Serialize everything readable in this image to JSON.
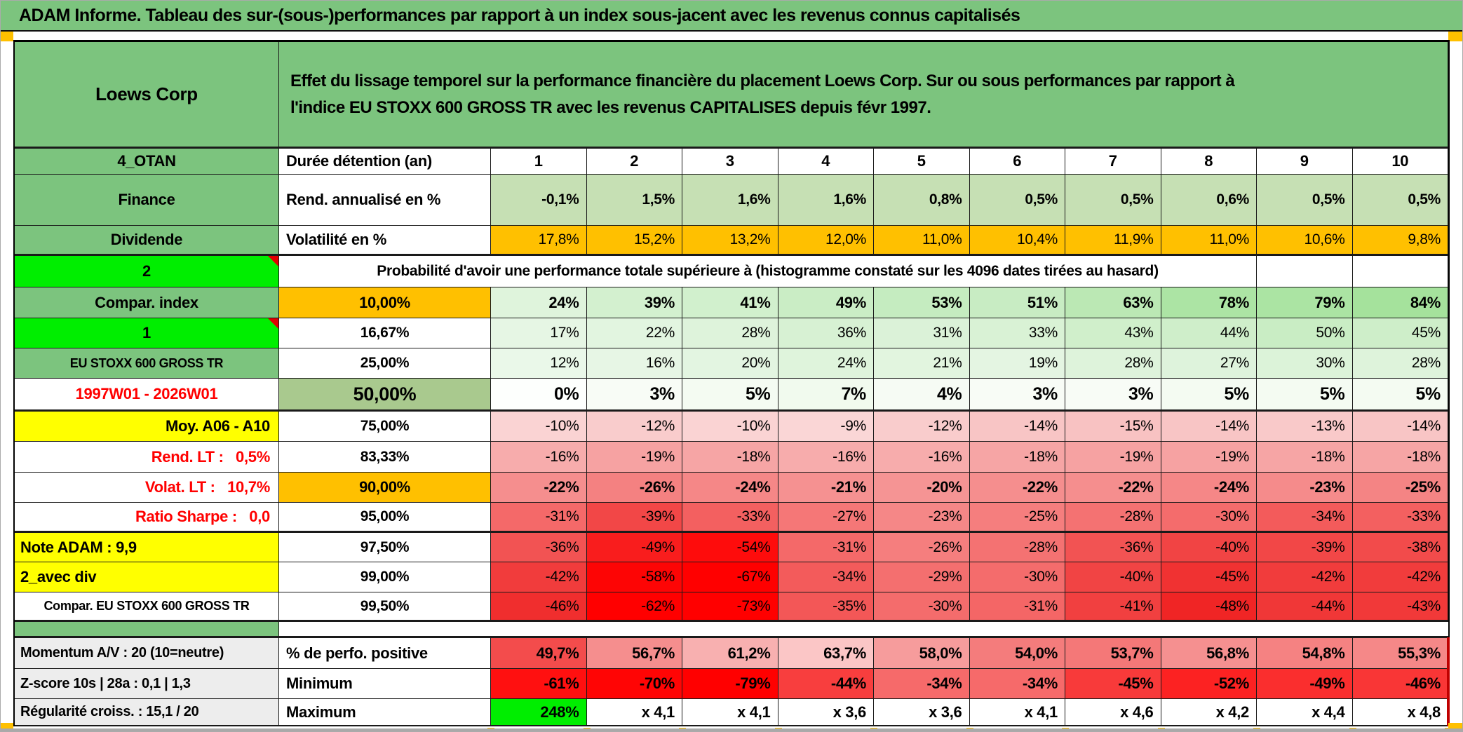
{
  "title": "ADAM Informe. Tableau des sur-(sous-)performances par rapport à un index sous-jacent avec les revenus connus capitalisés",
  "header": {
    "instrument": "Loews Corp",
    "description": "Effet du lissage temporel sur la performance financière du placement Loews Corp. Sur ou sous performances par rapport à\nl'indice EU STOXX 600 GROSS TR avec les revenus CAPITALISES depuis févr 1997."
  },
  "colors": {
    "green": "#7CC47E",
    "bright_green": "#00EE00",
    "orange": "#FFC000",
    "yellow": "#FFFF00",
    "olive_green": "#A9C98E",
    "light_green": "#C6E0B4",
    "label_gray": "#EDEDED",
    "red_text": "#FF0000",
    "comment_marker_red": "#E00000"
  },
  "table": {
    "rows": [
      {
        "label": "4_OTAN",
        "label_bg": "#7CC47E",
        "col2": "Durée détention (an)",
        "col2_bg": "#FFFFFF",
        "values": [
          "1",
          "2",
          "3",
          "4",
          "5",
          "6",
          "7",
          "8",
          "9",
          "10"
        ],
        "bgs": [
          "#FFFFFF",
          "#FFFFFF",
          "#FFFFFF",
          "#FFFFFF",
          "#FFFFFF",
          "#FFFFFF",
          "#FFFFFF",
          "#FFFFFF",
          "#FFFFFF",
          "#FFFFFF"
        ]
      },
      {
        "label": "Finance",
        "label_bg": "#7CC47E",
        "col2": "Rend. annualisé en %",
        "col2_bg": "#FFFFFF",
        "values": [
          "-0,1%",
          "1,5%",
          "1,6%",
          "1,6%",
          "0,8%",
          "0,5%",
          "0,5%",
          "0,6%",
          "0,5%",
          "0,5%"
        ],
        "bgs": [
          "#C6E0B4",
          "#C6E0B4",
          "#C6E0B4",
          "#C6E0B4",
          "#C6E0B4",
          "#C6E0B4",
          "#C6E0B4",
          "#C6E0B4",
          "#C6E0B4",
          "#C6E0B4"
        ]
      },
      {
        "label": "Dividende",
        "label_bg": "#7CC47E",
        "col2": "Volatilité en %",
        "col2_bg": "#FFFFFF",
        "values": [
          "17,8%",
          "15,2%",
          "13,2%",
          "12,0%",
          "11,0%",
          "10,4%",
          "11,9%",
          "11,0%",
          "10,6%",
          "9,8%"
        ],
        "bgs": [
          "#FFC000",
          "#FFC000",
          "#FFC000",
          "#FFC000",
          "#FFC000",
          "#FFC000",
          "#FFC000",
          "#FFC000",
          "#FFC000",
          "#FFC000"
        ]
      },
      {
        "label": "2",
        "label_bg": "#00EE00",
        "col2": "Probabilité d'avoir une performance totale supérieure à (histogramme constaté sur les 4096 dates tirées au hasard)",
        "col2_bg": "#FFFFFF",
        "values": [
          "",
          ""
        ],
        "bgs": [
          "#FFFFFF",
          "#FFFFFF"
        ]
      },
      {
        "label": "Compar. index",
        "label_bg": "#7CC47E",
        "col2": "10,00%",
        "col2_bg": "#FFC000",
        "values": [
          "24%",
          "39%",
          "41%",
          "49%",
          "53%",
          "51%",
          "63%",
          "78%",
          "79%",
          "84%"
        ],
        "bgs": [
          "#DFF4DC",
          "#D3F0CF",
          "#D1F0CD",
          "#CAEDC5",
          "#C5ECC0",
          "#C8ECC3",
          "#BBE8B4",
          "#ACE4A4",
          "#ABE4A3",
          "#A5E29C"
        ]
      },
      {
        "label": "1",
        "label_bg": "#00EE00",
        "col2": "16,67%",
        "col2_bg": "#FFFFFF",
        "values": [
          "17%",
          "22%",
          "28%",
          "36%",
          "31%",
          "33%",
          "43%",
          "44%",
          "50%",
          "45%"
        ],
        "bgs": [
          "#E6F6E4",
          "#E2F5E0",
          "#DEF3DB",
          "#D7F1D3",
          "#DBF2D8",
          "#D9F2D5",
          "#D0EFCB",
          "#CFEECA",
          "#C9EDC4",
          "#CEEEC9"
        ]
      },
      {
        "label": "EU STOXX 600 GROSS TR",
        "label_bg": "#7CC47E",
        "col2": "25,00%",
        "col2_bg": "#FFFFFF",
        "values": [
          "12%",
          "16%",
          "20%",
          "24%",
          "21%",
          "19%",
          "28%",
          "27%",
          "30%",
          "28%"
        ],
        "bgs": [
          "#EAF8E9",
          "#E7F6E5",
          "#E3F5E1",
          "#DFF4DC",
          "#E2F5DF",
          "#E4F5E2",
          "#DEF3DB",
          "#DEF3DC",
          "#DCF3D9",
          "#DEF3DB"
        ]
      },
      {
        "label": "1997W01 - 2026W01",
        "label_bg": "#FFFFFF",
        "label_color": "#FF0000",
        "col2": "50,00%",
        "col2_bg": "#A9C98E",
        "values": [
          "0%",
          "3%",
          "5%",
          "7%",
          "4%",
          "3%",
          "3%",
          "5%",
          "5%",
          "5%"
        ],
        "bgs": [
          "#FDFFFD",
          "#F8FCF6",
          "#F4FBF2",
          "#F1FAEE",
          "#F6FBF4",
          "#F8FCF6",
          "#F8FCF6",
          "#F4FBF2",
          "#F4FBF2",
          "#F4FBF2"
        ]
      },
      {
        "label": "Moy. A06 - A10",
        "label_bg": "#FFFF00",
        "col2": "75,00%",
        "col2_bg": "#FFFFFF",
        "values": [
          "-10%",
          "-12%",
          "-10%",
          "-9%",
          "-12%",
          "-14%",
          "-15%",
          "-14%",
          "-13%",
          "-14%"
        ],
        "bgs": [
          "#FAD3D3",
          "#F9CCCC",
          "#FAD3D3",
          "#FAD6D6",
          "#F9CCCC",
          "#F8C5C5",
          "#F8C2C2",
          "#F8C5C5",
          "#F9C9C9",
          "#F8C5C5"
        ]
      },
      {
        "label": "Rend. LT :   0,5%",
        "label_bg": "#FFFFFF",
        "label_color": "#FF0000",
        "col2": "83,33%",
        "col2_bg": "#FFFFFF",
        "values": [
          "-16%",
          "-19%",
          "-18%",
          "-16%",
          "-16%",
          "-18%",
          "-19%",
          "-19%",
          "-18%",
          "-18%"
        ],
        "bgs": [
          "#F7ACAC",
          "#F6A2A2",
          "#F6A5A5",
          "#F7ACAC",
          "#F7ACAC",
          "#F6A5A5",
          "#F6A2A2",
          "#F6A2A2",
          "#F6A5A5",
          "#F6A5A5"
        ]
      },
      {
        "label": "Volat. LT :   10,7%",
        "label_bg": "#FFFFFF",
        "label_color": "#FF0000",
        "col2": "90,00%",
        "col2_bg": "#FFC000",
        "values": [
          "-22%",
          "-26%",
          "-24%",
          "-21%",
          "-20%",
          "-22%",
          "-22%",
          "-24%",
          "-23%",
          "-25%"
        ],
        "bgs": [
          "#F58E8E",
          "#F48181",
          "#F58787",
          "#F59191",
          "#F59494",
          "#F58E8E",
          "#F58E8E",
          "#F58787",
          "#F58B8B",
          "#F48484"
        ]
      },
      {
        "label": "Ratio Sharpe :   0,0",
        "label_bg": "#FFFFFF",
        "label_color": "#FF0000",
        "col2": "95,00%",
        "col2_bg": "#FFFFFF",
        "values": [
          "-31%",
          "-39%",
          "-33%",
          "-27%",
          "-23%",
          "-25%",
          "-28%",
          "-30%",
          "-34%",
          "-33%"
        ],
        "bgs": [
          "#F46969",
          "#F24747",
          "#F36060",
          "#F57777",
          "#F58787",
          "#F57E7E",
          "#F47272",
          "#F46C6C",
          "#F35B5B",
          "#F36060"
        ]
      },
      {
        "label": "Note ADAM : 9,9",
        "label_bg": "#FFFF00",
        "col2": "97,50%",
        "col2_bg": "#FFFFFF",
        "values": [
          "-36%",
          "-49%",
          "-54%",
          "-31%",
          "-26%",
          "-28%",
          "-36%",
          "-40%",
          "-39%",
          "-38%"
        ],
        "bgs": [
          "#F25353",
          "#F91D1D",
          "#FE0C0C",
          "#F46969",
          "#F57E7E",
          "#F47272",
          "#F25353",
          "#F14444",
          "#F24747",
          "#F24B4B"
        ]
      },
      {
        "label": "2_avec div",
        "label_bg": "#FFFF00",
        "col2": "99,00%",
        "col2_bg": "#FFFFFF",
        "values": [
          "-42%",
          "-58%",
          "-67%",
          "-34%",
          "-29%",
          "-30%",
          "-40%",
          "-45%",
          "-42%",
          "-42%"
        ],
        "bgs": [
          "#F13C3C",
          "#FD0505",
          "#FF0000",
          "#F35B5B",
          "#F46F6F",
          "#F46C6C",
          "#F14444",
          "#F03232",
          "#F13C3C",
          "#F13C3C"
        ]
      },
      {
        "label": "Compar. EU STOXX 600 GROSS TR",
        "label_bg": "#FFFFFF",
        "col2": "99,50%",
        "col2_bg": "#FFFFFF",
        "values": [
          "-46%",
          "-62%",
          "-73%",
          "-35%",
          "-30%",
          "-31%",
          "-41%",
          "-48%",
          "-44%",
          "-43%"
        ],
        "bgs": [
          "#F02E2E",
          "#FF0000",
          "#FF0000",
          "#F35757",
          "#F46C6C",
          "#F46666",
          "#F14040",
          "#F02525",
          "#F03737",
          "#F13939"
        ]
      },
      {
        "label": "Momentum A/V : 20 (10=neutre)",
        "label_bg": "#EDEDED",
        "col2": "% de perfo. positive",
        "col2_bg": "#FFFFFF",
        "values": [
          "49,7%",
          "56,7%",
          "61,2%",
          "63,7%",
          "58,0%",
          "54,0%",
          "53,7%",
          "56,8%",
          "54,8%",
          "55,3%"
        ],
        "bgs": [
          "#F34C4C",
          "#F58E8E",
          "#F8B0B0",
          "#FBC6C6",
          "#F69C9C",
          "#F47C7C",
          "#F47878",
          "#F59090",
          "#F58282",
          "#F58888"
        ]
      },
      {
        "label": "Z-score 10s | 28a : 0,1 | 1,3",
        "label_bg": "#EDEDED",
        "col2": "Minimum",
        "col2_bg": "#FFFFFF",
        "values": [
          "-61%",
          "-70%",
          "-79%",
          "-44%",
          "-34%",
          "-34%",
          "-45%",
          "-52%",
          "-49%",
          "-46%"
        ],
        "bgs": [
          "#FF1010",
          "#FF0505",
          "#FF0000",
          "#F83E3E",
          "#F66A6A",
          "#F66A6A",
          "#F83A3A",
          "#FC2222",
          "#FA2E2E",
          "#F93636"
        ]
      },
      {
        "label": "Régularité croiss. : 15,1 / 20",
        "label_bg": "#EDEDED",
        "col2": "Maximum",
        "col2_bg": "#FFFFFF",
        "values": [
          "248%",
          "x 4,1",
          "x 4,1",
          "x 3,6",
          "x 3,6",
          "x 4,1",
          "x 4,6",
          "x 4,2",
          "x 4,4",
          "x 4,8"
        ],
        "bgs": [
          "#00EE00",
          "#FFFFFF",
          "#FFFFFF",
          "#FFFFFF",
          "#FFFFFF",
          "#FFFFFF",
          "#FFFFFF",
          "#FFFFFF",
          "#FFFFFF",
          "#FFFFFF"
        ]
      }
    ]
  }
}
